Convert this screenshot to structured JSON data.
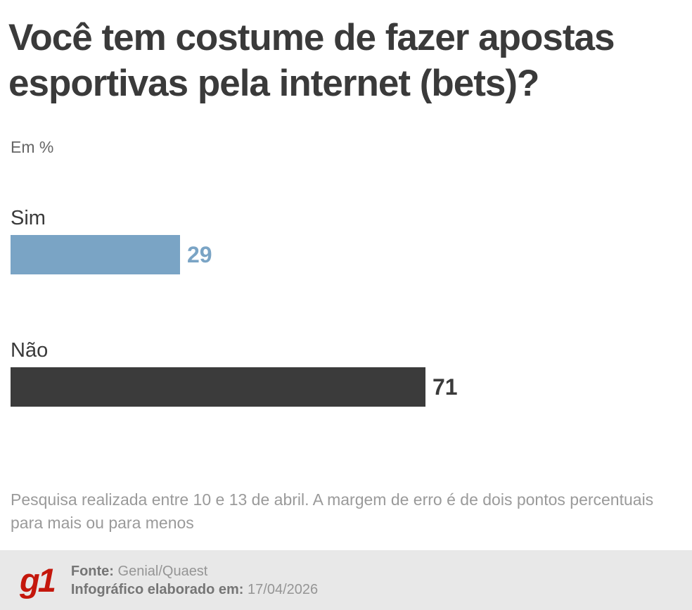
{
  "title": "Você tem costume de fazer apostas esportivas pela internet (bets)?",
  "unit_label": "Em %",
  "chart_data": {
    "type": "bar",
    "orientation": "horizontal",
    "title": "Você tem costume de fazer apostas esportivas pela internet (bets)?",
    "unit": "Em %",
    "categories": [
      "Sim",
      "Não"
    ],
    "values": [
      29,
      71
    ],
    "bar_colors": [
      "#7aa4c5",
      "#3b3b3b"
    ],
    "value_label_colors": [
      "#7aa4c5",
      "#3b3b3b"
    ],
    "xlim": [
      0,
      100
    ],
    "grid": false,
    "legend": "none",
    "value_label_position": "end-of-bar"
  },
  "footnote": "Pesquisa realizada entre 10 e 13 de abril. A margem de erro é de dois pontos percentuais para mais ou para menos",
  "footer": {
    "logo_text": "g1",
    "logo_color": "#c4170c",
    "source_label": "Fonte:",
    "source_value": "Genial/Quaest",
    "made_label": "Infográfico elaborado em:",
    "made_value": "17/04/2026"
  }
}
